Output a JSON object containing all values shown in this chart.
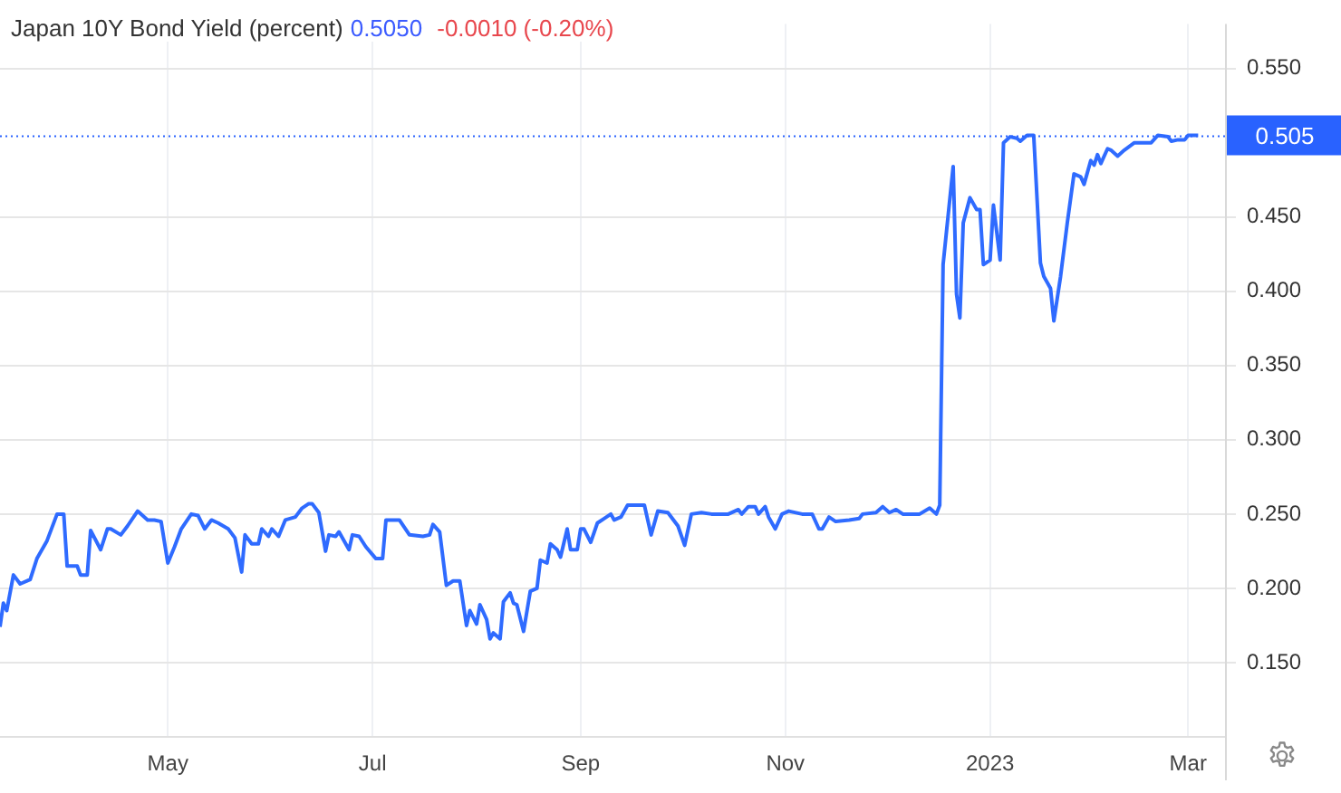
{
  "chart_data": {
    "type": "line",
    "title": "Japan 10Y Bond Yield (percent)",
    "annotations": [
      "0.5050",
      "-0.0010 (-0.20%)"
    ],
    "x": [
      "2022-03-12",
      "2022-03-13",
      "2022-03-14",
      "2022-03-16",
      "2022-03-18",
      "2022-03-21",
      "2022-03-23",
      "2022-03-26",
      "2022-03-29",
      "2022-03-31",
      "2022-04-01",
      "2022-04-04",
      "2022-04-05",
      "2022-04-07",
      "2022-04-08",
      "2022-04-11",
      "2022-04-13",
      "2022-04-14",
      "2022-04-17",
      "2022-04-19",
      "2022-04-22",
      "2022-04-25",
      "2022-04-27",
      "2022-04-29",
      "2022-05-01",
      "2022-05-03",
      "2022-05-05",
      "2022-05-08",
      "2022-05-10",
      "2022-05-12",
      "2022-05-14",
      "2022-05-16",
      "2022-05-19",
      "2022-05-21",
      "2022-05-23",
      "2022-05-24",
      "2022-05-26",
      "2022-05-28",
      "2022-05-29",
      "2022-05-31",
      "2022-06-01",
      "2022-06-03",
      "2022-06-05",
      "2022-06-08",
      "2022-06-10",
      "2022-06-12",
      "2022-06-13",
      "2022-06-15",
      "2022-06-17",
      "2022-06-18",
      "2022-06-20",
      "2022-06-21",
      "2022-06-24",
      "2022-06-25",
      "2022-06-27",
      "2022-06-29",
      "2022-07-02",
      "2022-07-04",
      "2022-07-05",
      "2022-07-09",
      "2022-07-12",
      "2022-07-16",
      "2022-07-18",
      "2022-07-19",
      "2022-07-21",
      "2022-07-23",
      "2022-07-25",
      "2022-07-27",
      "2022-07-29",
      "2022-07-30",
      "2022-08-01",
      "2022-08-02",
      "2022-08-04",
      "2022-08-05",
      "2022-08-06",
      "2022-08-08",
      "2022-08-09",
      "2022-08-11",
      "2022-08-12",
      "2022-08-13",
      "2022-08-15",
      "2022-08-17",
      "2022-08-19",
      "2022-08-20",
      "2022-08-22",
      "2022-08-23",
      "2022-08-25",
      "2022-08-26",
      "2022-08-28",
      "2022-08-29",
      "2022-08-31",
      "2022-09-01",
      "2022-09-02",
      "2022-09-04",
      "2022-09-06",
      "2022-09-08",
      "2022-09-10",
      "2022-09-11",
      "2022-09-13",
      "2022-09-15",
      "2022-09-18",
      "2022-09-20",
      "2022-09-22",
      "2022-09-24",
      "2022-09-27",
      "2022-09-30",
      "2022-10-02",
      "2022-10-04",
      "2022-10-07",
      "2022-10-10",
      "2022-10-15",
      "2022-10-18",
      "2022-10-19",
      "2022-10-21",
      "2022-10-23",
      "2022-10-24",
      "2022-10-26",
      "2022-10-27",
      "2022-10-29",
      "2022-10-31",
      "2022-11-02",
      "2022-11-06",
      "2022-11-09",
      "2022-11-11",
      "2022-11-12",
      "2022-11-14",
      "2022-11-16",
      "2022-11-20",
      "2022-11-23",
      "2022-11-24",
      "2022-11-28",
      "2022-11-30",
      "2022-12-02",
      "2022-12-04",
      "2022-12-06",
      "2022-12-11",
      "2022-12-14",
      "2022-12-16",
      "2022-12-17",
      "2022-12-18",
      "2022-12-21",
      "2022-12-22",
      "2022-12-23",
      "2022-12-24",
      "2022-12-26",
      "2022-12-28",
      "2022-12-29",
      "2022-12-30",
      "2023-01-01",
      "2023-01-02",
      "2023-01-04",
      "2023-01-05",
      "2023-01-07",
      "2023-01-09",
      "2023-01-10",
      "2023-01-12",
      "2023-01-14",
      "2023-01-16",
      "2023-01-17",
      "2023-01-19",
      "2023-01-20",
      "2023-01-22",
      "2023-01-24",
      "2023-01-26",
      "2023-01-28",
      "2023-01-29",
      "2023-01-31",
      "2023-02-01",
      "2023-02-02",
      "2023-02-03",
      "2023-02-05",
      "2023-02-06",
      "2023-02-08",
      "2023-02-10",
      "2023-02-13",
      "2023-02-18",
      "2023-02-20",
      "2023-02-23",
      "2023-02-24",
      "2023-02-26",
      "2023-02-28",
      "2023-03-01",
      "2023-03-04"
    ],
    "series": [
      {
        "color": "#2f6bff",
        "values": [
          0.174,
          0.19,
          0.185,
          0.209,
          0.203,
          0.206,
          0.22,
          0.232,
          0.25,
          0.25,
          0.215,
          0.215,
          0.209,
          0.209,
          0.239,
          0.226,
          0.24,
          0.24,
          0.236,
          0.242,
          0.252,
          0.246,
          0.246,
          0.245,
          0.217,
          0.228,
          0.24,
          0.25,
          0.249,
          0.24,
          0.246,
          0.244,
          0.24,
          0.234,
          0.211,
          0.236,
          0.23,
          0.23,
          0.24,
          0.235,
          0.24,
          0.235,
          0.246,
          0.248,
          0.254,
          0.257,
          0.257,
          0.251,
          0.225,
          0.236,
          0.235,
          0.238,
          0.226,
          0.236,
          0.235,
          0.228,
          0.22,
          0.22,
          0.246,
          0.246,
          0.236,
          0.235,
          0.236,
          0.243,
          0.238,
          0.202,
          0.205,
          0.205,
          0.175,
          0.185,
          0.176,
          0.189,
          0.179,
          0.166,
          0.17,
          0.166,
          0.191,
          0.197,
          0.19,
          0.189,
          0.171,
          0.198,
          0.2,
          0.219,
          0.217,
          0.23,
          0.226,
          0.221,
          0.24,
          0.226,
          0.226,
          0.24,
          0.24,
          0.231,
          0.244,
          0.247,
          0.25,
          0.246,
          0.248,
          0.256,
          0.256,
          0.256,
          0.236,
          0.252,
          0.251,
          0.242,
          0.229,
          0.25,
          0.251,
          0.25,
          0.25,
          0.253,
          0.25,
          0.255,
          0.255,
          0.25,
          0.255,
          0.248,
          0.24,
          0.25,
          0.252,
          0.25,
          0.25,
          0.24,
          0.24,
          0.248,
          0.245,
          0.246,
          0.247,
          0.25,
          0.251,
          0.255,
          0.251,
          0.253,
          0.25,
          0.25,
          0.254,
          0.25,
          0.256,
          0.418,
          0.484,
          0.398,
          0.382,
          0.446,
          0.463,
          0.455,
          0.455,
          0.418,
          0.421,
          0.458,
          0.421,
          0.5,
          0.504,
          0.503,
          0.501,
          0.505,
          0.505,
          0.419,
          0.41,
          0.402,
          0.38,
          0.41,
          0.446,
          0.479,
          0.477,
          0.472,
          0.488,
          0.485,
          0.492,
          0.486,
          0.496,
          0.495,
          0.491,
          0.495,
          0.5,
          0.5,
          0.505,
          0.504,
          0.501,
          0.502,
          0.502,
          0.505,
          0.505
        ]
      }
    ],
    "xlim": [
      "2022-03-12",
      "2023-03-12"
    ],
    "xticks": [
      {
        "value": "2022-05-01",
        "label": "May"
      },
      {
        "value": "2022-07-01",
        "label": "Jul"
      },
      {
        "value": "2022-09-01",
        "label": "Sep"
      },
      {
        "value": "2022-11-01",
        "label": "Nov"
      },
      {
        "value": "2023-01-01",
        "label": "2023"
      },
      {
        "value": "2023-03-01",
        "label": "Mar"
      }
    ],
    "ylim": [
      0.1,
      0.58
    ],
    "yticks": [
      {
        "value": 0.15,
        "label": "0.150"
      },
      {
        "value": 0.2,
        "label": "0.200"
      },
      {
        "value": 0.25,
        "label": "0.250"
      },
      {
        "value": 0.3,
        "label": "0.300"
      },
      {
        "value": 0.35,
        "label": "0.350"
      },
      {
        "value": 0.4,
        "label": "0.400"
      },
      {
        "value": 0.45,
        "label": "0.450"
      },
      {
        "value": 0.55,
        "label": "0.550"
      }
    ],
    "ref_lines": [
      {
        "axis": "y",
        "value": 0.505,
        "label": "0.505",
        "color": "#2962ff",
        "line_style": "dotted"
      }
    ],
    "grid": true,
    "legend": false,
    "marker": "none",
    "line_style": "solid"
  }
}
